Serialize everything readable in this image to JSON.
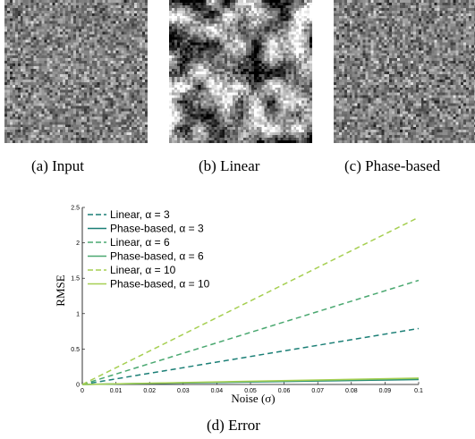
{
  "panels": [
    {
      "caption": "(a)  Input",
      "texture": "fine-noise"
    },
    {
      "caption": "(b)  Linear",
      "texture": "blotchy-amplified-noise"
    },
    {
      "caption": "(c)  Phase-based",
      "texture": "fine-noise"
    }
  ],
  "chart_caption": "(d)  Error",
  "chart_data": {
    "type": "line",
    "title": "",
    "xlabel": "Noise (σ)",
    "ylabel": "RMSE",
    "xlim": [
      0,
      0.1
    ],
    "ylim": [
      0,
      2.5
    ],
    "x_ticks": [
      "0",
      "0.01",
      "0.02",
      "0.03",
      "0.04",
      "0.05",
      "0.06",
      "0.07",
      "0.08",
      "0.09",
      "0.1"
    ],
    "y_ticks": [
      "0",
      "0.5",
      "1",
      "1.5",
      "2",
      "2.5"
    ],
    "grid": false,
    "legend_position": "top-left",
    "series": [
      {
        "name": "Linear, α = 3",
        "style": "dashed",
        "color": "#1b7f76",
        "x": [
          0,
          0.1
        ],
        "y": [
          0,
          0.79
        ]
      },
      {
        "name": "Phase-based, α = 3",
        "style": "solid",
        "color": "#1b7f76",
        "x": [
          0,
          0.1
        ],
        "y": [
          0,
          0.07
        ]
      },
      {
        "name": "Linear, α = 6",
        "style": "dashed",
        "color": "#4aa870",
        "x": [
          0,
          0.1
        ],
        "y": [
          0,
          1.47
        ]
      },
      {
        "name": "Phase-based, α = 6",
        "style": "solid",
        "color": "#4aa870",
        "x": [
          0,
          0.1
        ],
        "y": [
          0,
          0.08
        ]
      },
      {
        "name": "Linear, α = 10",
        "style": "dashed",
        "color": "#a6cf52",
        "x": [
          0,
          0.1
        ],
        "y": [
          0,
          2.36
        ]
      },
      {
        "name": "Phase-based, α = 10",
        "style": "solid",
        "color": "#a6cf52",
        "x": [
          0,
          0.1
        ],
        "y": [
          0,
          0.09
        ]
      }
    ]
  }
}
